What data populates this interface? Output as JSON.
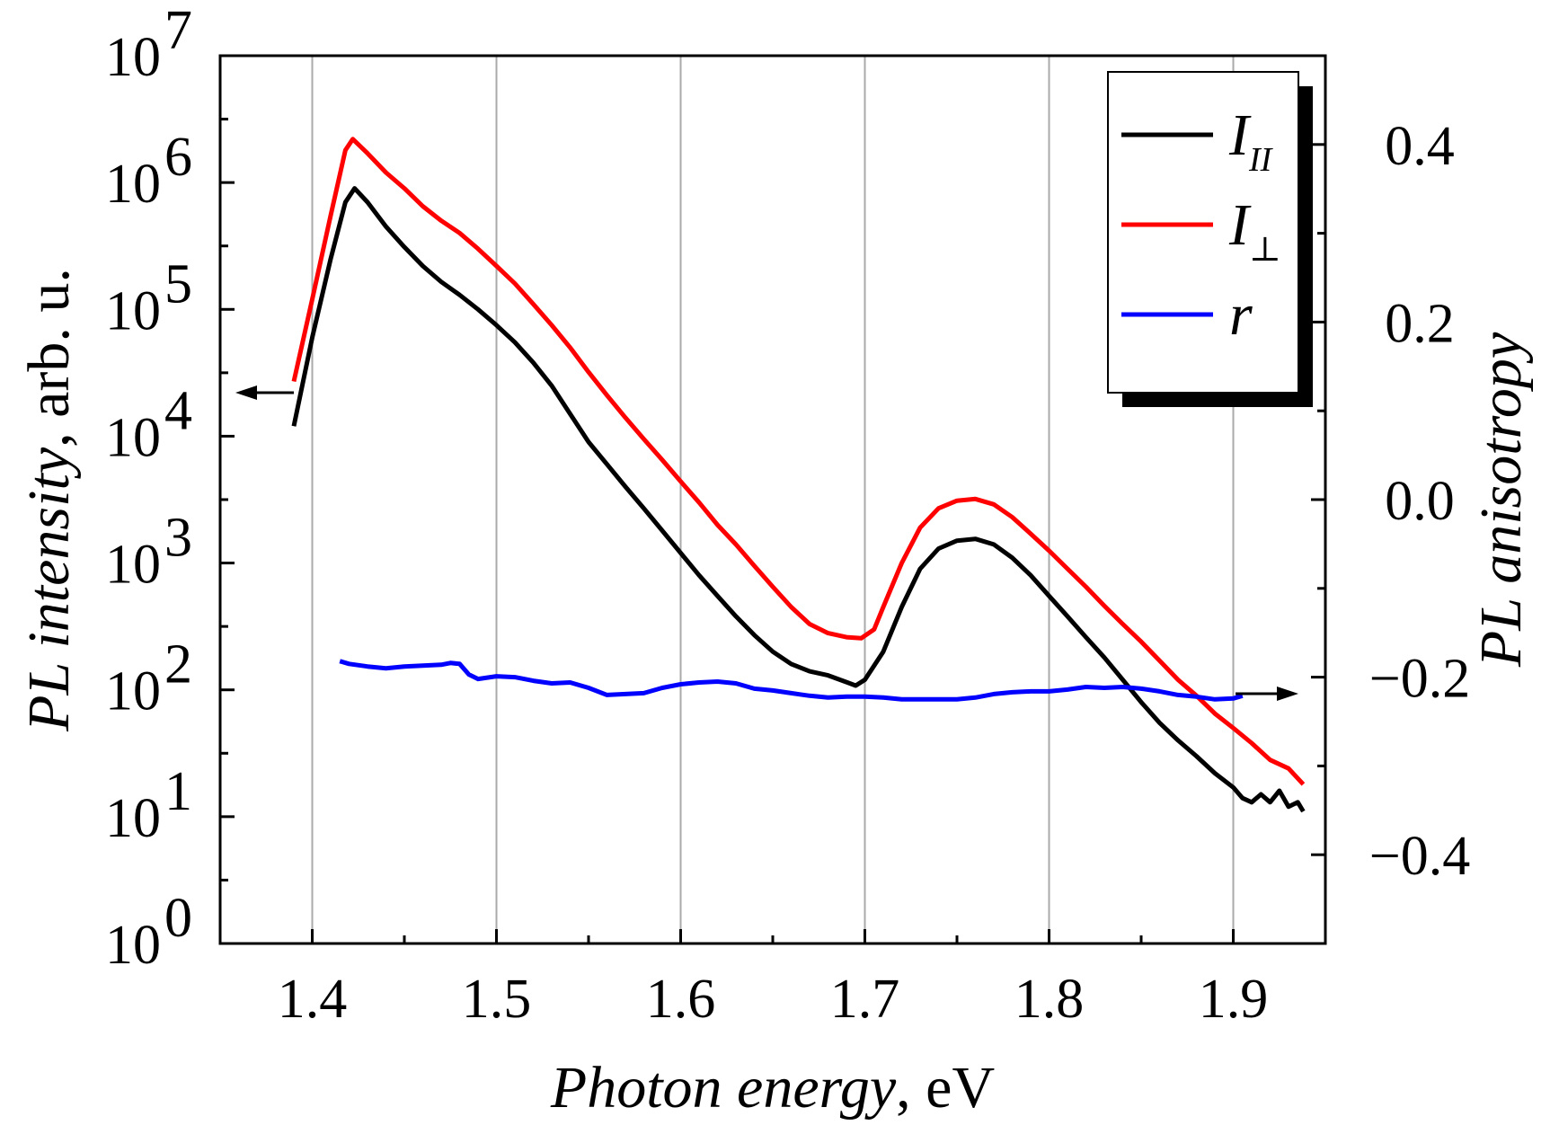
{
  "chart_data": {
    "type": "line",
    "xlabel": {
      "italic": "Photon energy",
      "rest": ", eV"
    },
    "ylabel_left": {
      "italic": "PL intensity",
      "rest": ", arb. u."
    },
    "ylabel_right": "PL anisotropy",
    "x_range": [
      1.35,
      1.95
    ],
    "x_ticks": [
      "1.4",
      "1.5",
      "1.6",
      "1.7",
      "1.8",
      "1.9"
    ],
    "x_tick_values": [
      1.4,
      1.5,
      1.6,
      1.7,
      1.8,
      1.9
    ],
    "y_left_scale": "log",
    "y_left_range": [
      1,
      10000000
    ],
    "y_left_ticks": [
      {
        "base": "10",
        "exp": "0"
      },
      {
        "base": "10",
        "exp": "1"
      },
      {
        "base": "10",
        "exp": "2"
      },
      {
        "base": "10",
        "exp": "3"
      },
      {
        "base": "10",
        "exp": "4"
      },
      {
        "base": "10",
        "exp": "5"
      },
      {
        "base": "10",
        "exp": "6"
      },
      {
        "base": "10",
        "exp": "7"
      }
    ],
    "y_right_range": [
      -0.5,
      0.5
    ],
    "y_right_ticks": [
      "−0.4",
      "−0.2",
      "0.0",
      "0.2",
      "0.4"
    ],
    "y_right_tick_values": [
      -0.4,
      -0.2,
      0.0,
      0.2,
      0.4
    ],
    "grid": "vertical",
    "legend_position": "top-right",
    "series": [
      {
        "name": "I_II",
        "legend": {
          "main": "I",
          "sub": "II"
        },
        "color": "#000000",
        "axis": "left",
        "points": [
          [
            1.39,
            12000
          ],
          [
            1.4,
            60000
          ],
          [
            1.41,
            250000
          ],
          [
            1.418,
            700000
          ],
          [
            1.423,
            900000
          ],
          [
            1.43,
            700000
          ],
          [
            1.44,
            450000
          ],
          [
            1.45,
            310000
          ],
          [
            1.46,
            220000
          ],
          [
            1.47,
            165000
          ],
          [
            1.48,
            130000
          ],
          [
            1.49,
            100000
          ],
          [
            1.5,
            75000
          ],
          [
            1.51,
            55000
          ],
          [
            1.52,
            38000
          ],
          [
            1.53,
            25000
          ],
          [
            1.54,
            15000
          ],
          [
            1.55,
            9000
          ],
          [
            1.56,
            6000
          ],
          [
            1.57,
            4000
          ],
          [
            1.58,
            2700
          ],
          [
            1.59,
            1800
          ],
          [
            1.6,
            1200
          ],
          [
            1.61,
            800
          ],
          [
            1.62,
            550
          ],
          [
            1.63,
            380
          ],
          [
            1.64,
            270
          ],
          [
            1.65,
            200
          ],
          [
            1.66,
            160
          ],
          [
            1.67,
            140
          ],
          [
            1.68,
            130
          ],
          [
            1.69,
            115
          ],
          [
            1.695,
            108
          ],
          [
            1.7,
            120
          ],
          [
            1.71,
            200
          ],
          [
            1.72,
            450
          ],
          [
            1.73,
            900
          ],
          [
            1.74,
            1300
          ],
          [
            1.75,
            1500
          ],
          [
            1.76,
            1550
          ],
          [
            1.77,
            1400
          ],
          [
            1.78,
            1100
          ],
          [
            1.79,
            800
          ],
          [
            1.8,
            550
          ],
          [
            1.81,
            380
          ],
          [
            1.82,
            260
          ],
          [
            1.83,
            180
          ],
          [
            1.84,
            120
          ],
          [
            1.85,
            80
          ],
          [
            1.86,
            55
          ],
          [
            1.87,
            40
          ],
          [
            1.88,
            30
          ],
          [
            1.89,
            22
          ],
          [
            1.9,
            17
          ],
          [
            1.905,
            14
          ],
          [
            1.91,
            13
          ],
          [
            1.915,
            15
          ],
          [
            1.92,
            13
          ],
          [
            1.925,
            16
          ],
          [
            1.93,
            12
          ],
          [
            1.935,
            13
          ],
          [
            1.938,
            11
          ]
        ]
      },
      {
        "name": "I_perp",
        "legend": {
          "main": "I",
          "sub": "⊥"
        },
        "color": "#ff0000",
        "axis": "left",
        "points": [
          [
            1.39,
            27000
          ],
          [
            1.4,
            120000
          ],
          [
            1.41,
            550000
          ],
          [
            1.418,
            1800000
          ],
          [
            1.422,
            2200000
          ],
          [
            1.43,
            1700000
          ],
          [
            1.44,
            1200000
          ],
          [
            1.45,
            900000
          ],
          [
            1.46,
            650000
          ],
          [
            1.47,
            500000
          ],
          [
            1.48,
            400000
          ],
          [
            1.49,
            300000
          ],
          [
            1.5,
            220000
          ],
          [
            1.51,
            160000
          ],
          [
            1.52,
            110000
          ],
          [
            1.53,
            75000
          ],
          [
            1.54,
            50000
          ],
          [
            1.55,
            32000
          ],
          [
            1.56,
            21000
          ],
          [
            1.57,
            14000
          ],
          [
            1.58,
            9500
          ],
          [
            1.59,
            6500
          ],
          [
            1.6,
            4400
          ],
          [
            1.61,
            3000
          ],
          [
            1.62,
            2000
          ],
          [
            1.63,
            1400
          ],
          [
            1.64,
            950
          ],
          [
            1.65,
            650
          ],
          [
            1.66,
            450
          ],
          [
            1.67,
            330
          ],
          [
            1.68,
            280
          ],
          [
            1.69,
            260
          ],
          [
            1.698,
            255
          ],
          [
            1.705,
            300
          ],
          [
            1.71,
            450
          ],
          [
            1.72,
            1000
          ],
          [
            1.73,
            1900
          ],
          [
            1.74,
            2700
          ],
          [
            1.75,
            3100
          ],
          [
            1.76,
            3200
          ],
          [
            1.77,
            2900
          ],
          [
            1.78,
            2300
          ],
          [
            1.79,
            1700
          ],
          [
            1.8,
            1250
          ],
          [
            1.81,
            900
          ],
          [
            1.82,
            650
          ],
          [
            1.83,
            460
          ],
          [
            1.84,
            330
          ],
          [
            1.85,
            240
          ],
          [
            1.86,
            170
          ],
          [
            1.87,
            120
          ],
          [
            1.88,
            90
          ],
          [
            1.89,
            65
          ],
          [
            1.9,
            50
          ],
          [
            1.91,
            38
          ],
          [
            1.92,
            28
          ],
          [
            1.93,
            24
          ],
          [
            1.938,
            18
          ]
        ]
      },
      {
        "name": "r",
        "legend": {
          "main": "r",
          "sub": ""
        },
        "color": "#0000ff",
        "axis": "right",
        "points": [
          [
            1.415,
            -0.182
          ],
          [
            1.42,
            -0.185
          ],
          [
            1.43,
            -0.188
          ],
          [
            1.44,
            -0.19
          ],
          [
            1.45,
            -0.188
          ],
          [
            1.46,
            -0.187
          ],
          [
            1.47,
            -0.186
          ],
          [
            1.475,
            -0.184
          ],
          [
            1.48,
            -0.185
          ],
          [
            1.485,
            -0.197
          ],
          [
            1.49,
            -0.202
          ],
          [
            1.5,
            -0.199
          ],
          [
            1.51,
            -0.2
          ],
          [
            1.52,
            -0.204
          ],
          [
            1.53,
            -0.207
          ],
          [
            1.54,
            -0.206
          ],
          [
            1.55,
            -0.212
          ],
          [
            1.56,
            -0.22
          ],
          [
            1.57,
            -0.219
          ],
          [
            1.58,
            -0.218
          ],
          [
            1.59,
            -0.212
          ],
          [
            1.6,
            -0.208
          ],
          [
            1.61,
            -0.206
          ],
          [
            1.62,
            -0.205
          ],
          [
            1.63,
            -0.207
          ],
          [
            1.64,
            -0.213
          ],
          [
            1.65,
            -0.215
          ],
          [
            1.66,
            -0.218
          ],
          [
            1.67,
            -0.221
          ],
          [
            1.68,
            -0.223
          ],
          [
            1.69,
            -0.222
          ],
          [
            1.7,
            -0.222
          ],
          [
            1.71,
            -0.223
          ],
          [
            1.72,
            -0.225
          ],
          [
            1.73,
            -0.225
          ],
          [
            1.74,
            -0.225
          ],
          [
            1.75,
            -0.225
          ],
          [
            1.76,
            -0.223
          ],
          [
            1.77,
            -0.219
          ],
          [
            1.78,
            -0.217
          ],
          [
            1.79,
            -0.216
          ],
          [
            1.8,
            -0.216
          ],
          [
            1.81,
            -0.214
          ],
          [
            1.82,
            -0.211
          ],
          [
            1.83,
            -0.212
          ],
          [
            1.84,
            -0.211
          ],
          [
            1.85,
            -0.213
          ],
          [
            1.86,
            -0.216
          ],
          [
            1.87,
            -0.22
          ],
          [
            1.88,
            -0.222
          ],
          [
            1.89,
            -0.225
          ],
          [
            1.9,
            -0.224
          ],
          [
            1.905,
            -0.221
          ]
        ]
      }
    ]
  }
}
